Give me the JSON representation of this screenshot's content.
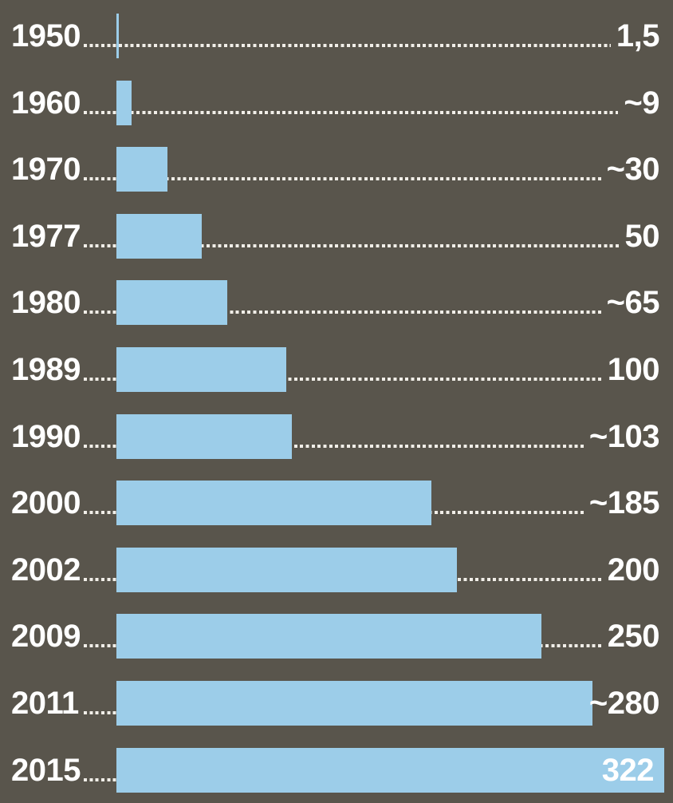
{
  "colors": {
    "background": "#59554c",
    "bar": "#9ccde9",
    "text": "#ffffff",
    "dots": "#f1eee8"
  },
  "chart_data": {
    "type": "bar",
    "orientation": "horizontal",
    "title": "",
    "xlabel": "",
    "ylabel": "",
    "xlim": [
      0,
      322
    ],
    "grid": false,
    "legend": false,
    "categories": [
      "1950",
      "1960",
      "1970",
      "1977",
      "1980",
      "1989",
      "1990",
      "2000",
      "2002",
      "2009",
      "2011",
      "2015"
    ],
    "values": [
      1.5,
      9,
      30,
      50,
      65,
      100,
      103,
      185,
      200,
      250,
      280,
      322
    ],
    "value_labels": [
      "1,5",
      "~9",
      "~30",
      "50",
      "~65",
      "100",
      "~103",
      "~185",
      "200",
      "250",
      "~280",
      "322"
    ],
    "rows": [
      {
        "category": "1950",
        "value": 1.5,
        "label": "1,5",
        "label_inside": false
      },
      {
        "category": "1960",
        "value": 9,
        "label": "~9",
        "label_inside": false
      },
      {
        "category": "1970",
        "value": 30,
        "label": "~30",
        "label_inside": false
      },
      {
        "category": "1977",
        "value": 50,
        "label": "50",
        "label_inside": false
      },
      {
        "category": "1980",
        "value": 65,
        "label": "~65",
        "label_inside": false
      },
      {
        "category": "1989",
        "value": 100,
        "label": "100",
        "label_inside": false
      },
      {
        "category": "1990",
        "value": 103,
        "label": "~103",
        "label_inside": false
      },
      {
        "category": "2000",
        "value": 185,
        "label": "~185",
        "label_inside": false
      },
      {
        "category": "2002",
        "value": 200,
        "label": "200",
        "label_inside": false
      },
      {
        "category": "2009",
        "value": 250,
        "label": "250",
        "label_inside": false
      },
      {
        "category": "2011",
        "value": 280,
        "label": "~280",
        "label_inside": false
      },
      {
        "category": "2015",
        "value": 322,
        "label": "322",
        "label_inside": true
      }
    ]
  }
}
